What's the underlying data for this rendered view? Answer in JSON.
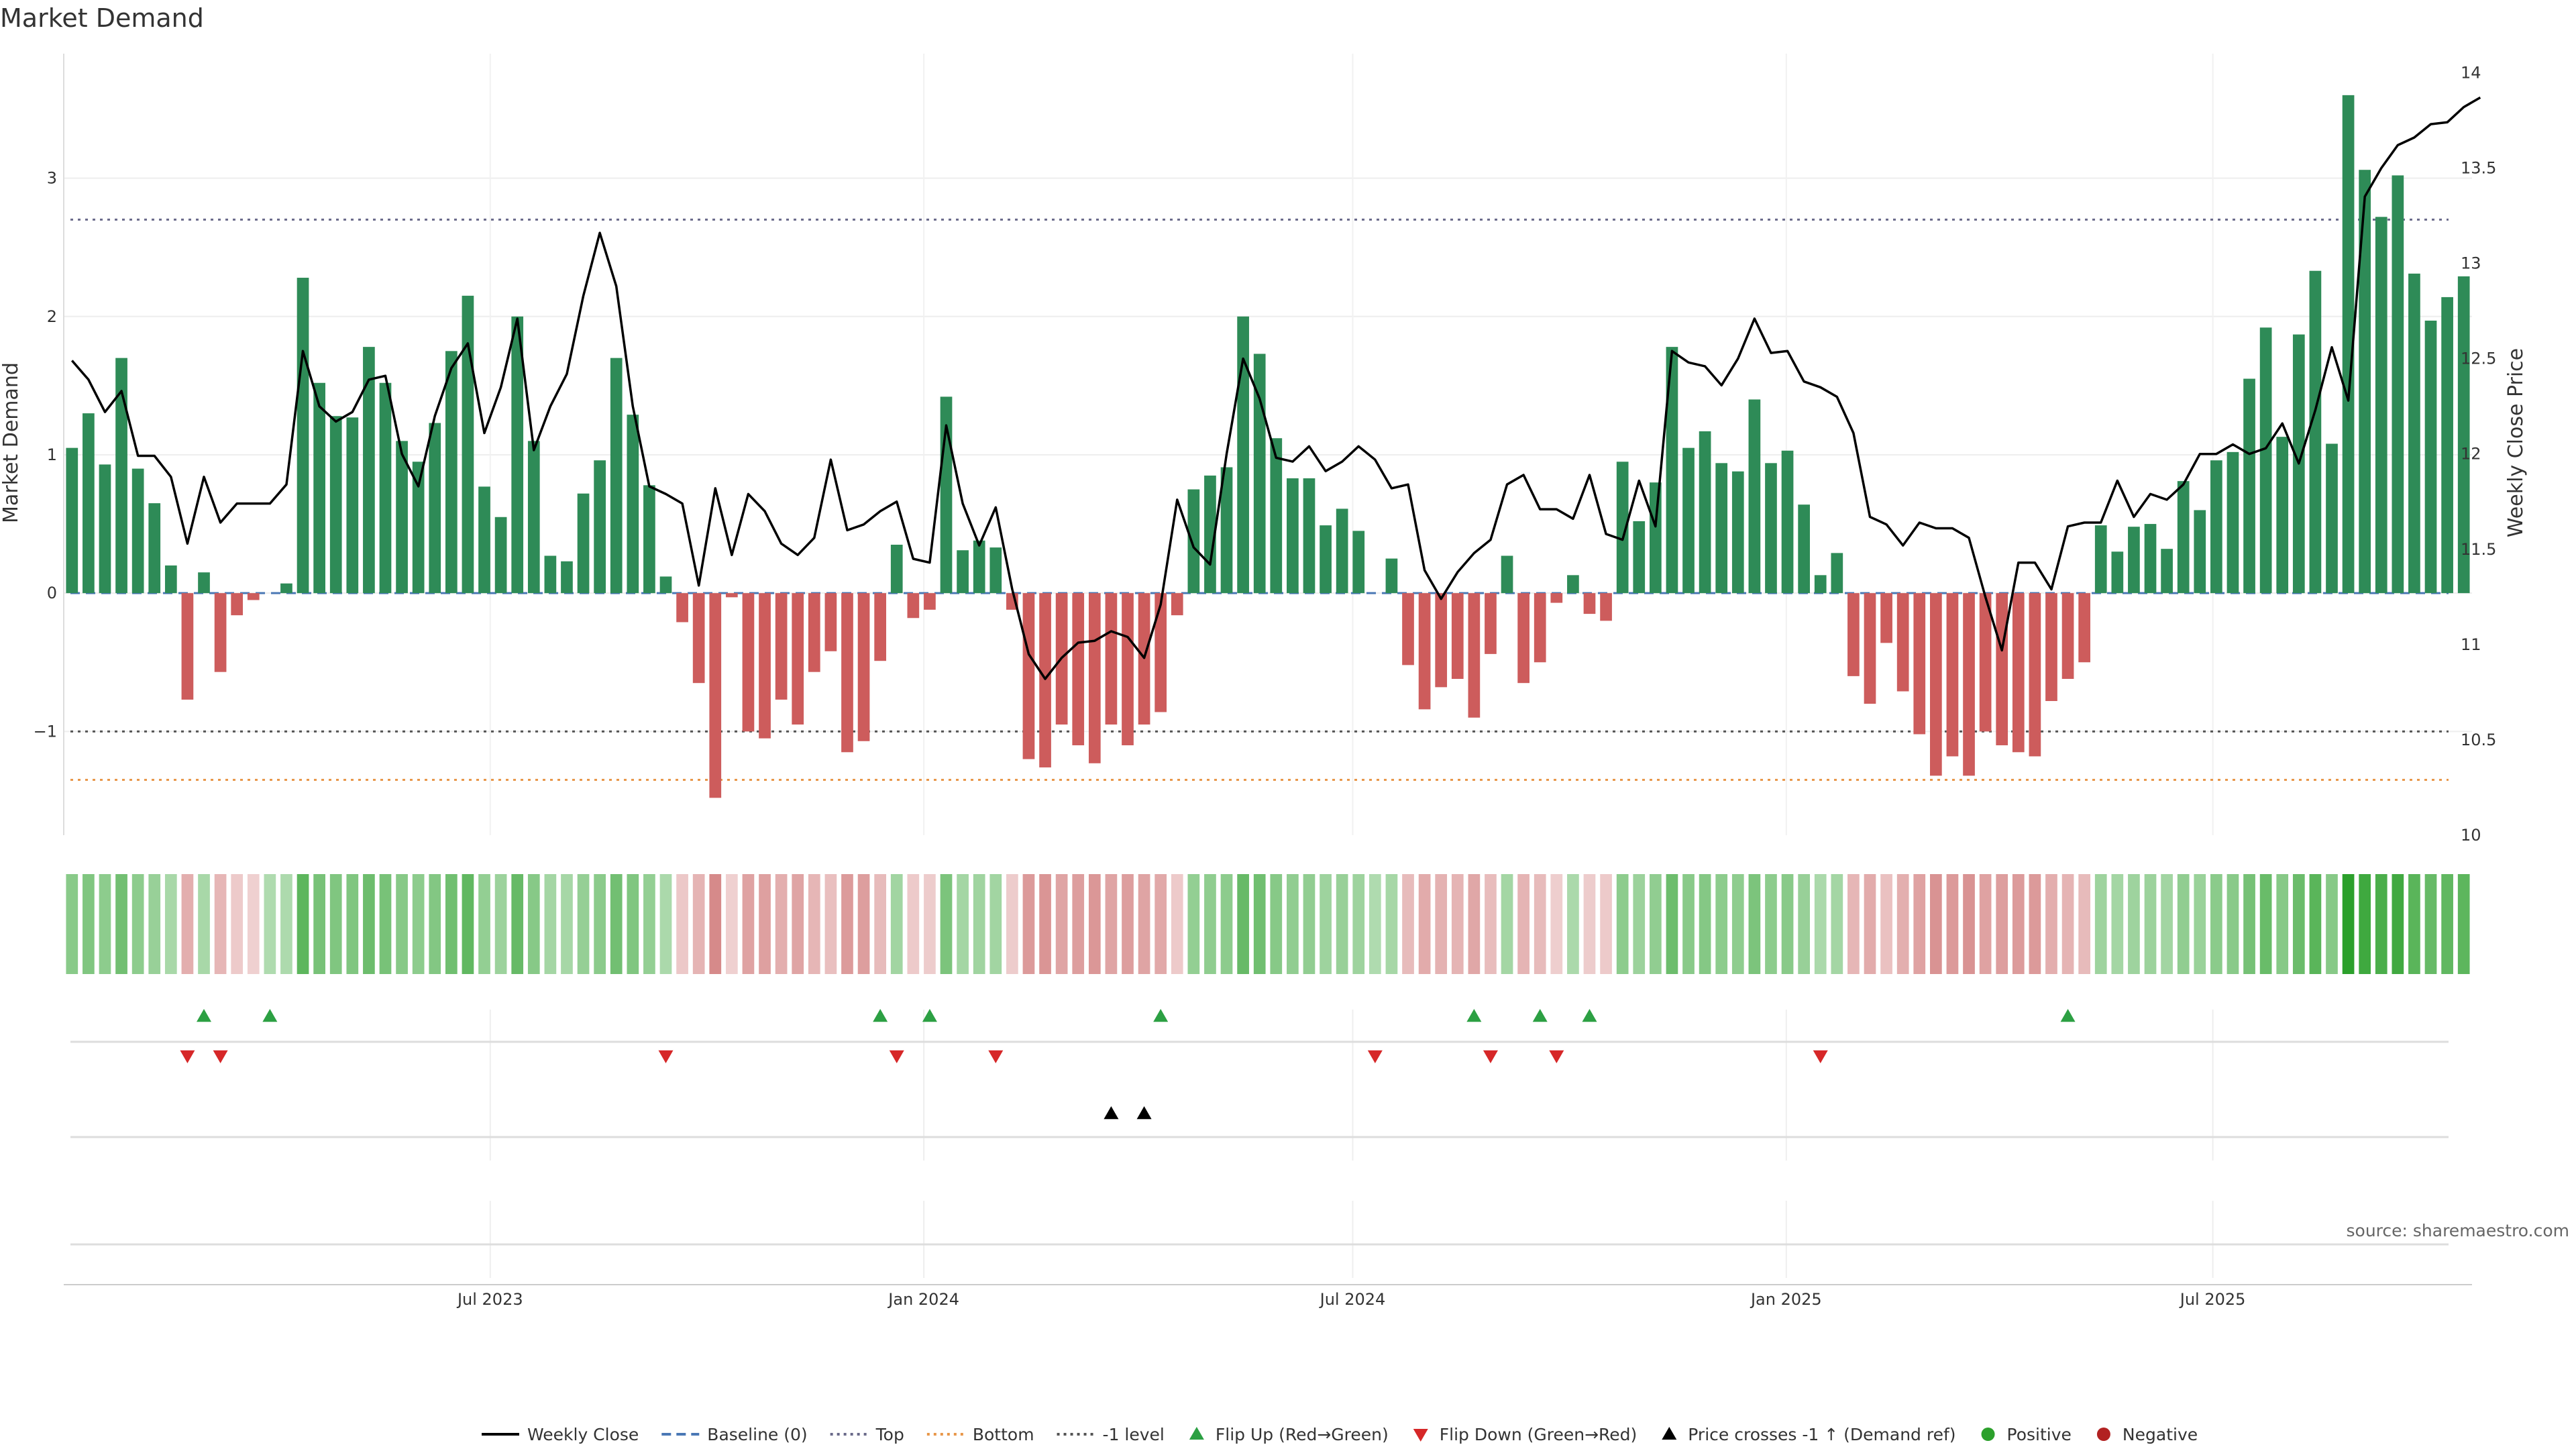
{
  "chart_data": {
    "type": "bar",
    "title": "Market Demand",
    "ylabel": "Market Demand",
    "y2label": "Weekly Close Price",
    "ylim": [
      -1.75,
      3.9
    ],
    "y2lim": [
      10,
      14.1
    ],
    "yticks": [
      -1,
      0,
      1,
      2,
      3
    ],
    "yticks_display": [
      "−1",
      "0",
      "1",
      "2",
      "3"
    ],
    "y2ticks": [
      10,
      10.5,
      11,
      11.5,
      12,
      12.5,
      13,
      13.5,
      14
    ],
    "date_start": "2023-01-01",
    "date_end": "2025-10-19",
    "x_tick_dates": [
      "2023-07-01",
      "2024-01-01",
      "2024-07-01",
      "2025-01-01",
      "2025-07-01"
    ],
    "x_tick_labels": [
      "Jul 2023",
      "Jan 2024",
      "Jul 2024",
      "Jan 2025",
      "Jul 2025"
    ],
    "reference_lines": {
      "top": 2.7,
      "bottom": -1.35,
      "minus_one": -1,
      "baseline": 0
    },
    "demand": [
      1.05,
      1.3,
      0.93,
      1.7,
      0.9,
      0.65,
      0.2,
      -0.77,
      0.15,
      -0.57,
      -0.16,
      -0.05,
      0.0,
      0.07,
      2.28,
      1.52,
      1.28,
      1.27,
      1.78,
      1.52,
      1.1,
      0.95,
      1.23,
      1.75,
      2.15,
      0.77,
      0.55,
      2.0,
      1.1,
      0.27,
      0.23,
      0.72,
      0.96,
      1.7,
      1.29,
      0.78,
      0.12,
      -0.21,
      -0.65,
      -1.48,
      -0.03,
      -1.0,
      -1.05,
      -0.77,
      -0.95,
      -0.57,
      -0.42,
      -1.15,
      -1.07,
      -0.49,
      0.35,
      -0.18,
      -0.12,
      1.42,
      0.31,
      0.38,
      0.33,
      -0.12,
      -1.2,
      -1.26,
      -0.95,
      -1.1,
      -1.23,
      -0.95,
      -1.1,
      -0.95,
      -0.86,
      -0.16,
      0.75,
      0.85,
      0.91,
      2.0,
      1.73,
      1.12,
      0.83,
      0.83,
      0.49,
      0.61,
      0.45,
      0.0,
      0.25,
      -0.52,
      -0.84,
      -0.68,
      -0.62,
      -0.9,
      -0.44,
      0.27,
      -0.65,
      -0.5,
      -0.07,
      0.13,
      -0.15,
      -0.2,
      0.95,
      0.52,
      0.8,
      1.78,
      1.05,
      1.17,
      0.94,
      0.88,
      1.4,
      0.94,
      1.03,
      0.64,
      0.13,
      0.29,
      -0.6,
      -0.8,
      -0.36,
      -0.71,
      -1.02,
      -1.32,
      -1.18,
      -1.32,
      -1.0,
      -1.1,
      -1.15,
      -1.18,
      -0.78,
      -0.62,
      -0.5,
      0.49,
      0.3,
      0.48,
      0.5,
      0.32,
      0.81,
      0.6,
      0.96,
      1.02,
      1.55,
      1.92,
      1.13,
      1.87,
      2.33,
      1.08,
      3.6,
      3.06,
      2.72,
      3.02,
      2.31,
      1.97,
      2.14,
      2.29
    ],
    "weekly_close": [
      12.49,
      12.39,
      12.22,
      12.33,
      11.99,
      11.99,
      11.88,
      11.53,
      11.88,
      11.64,
      11.74,
      11.74,
      11.74,
      11.84,
      12.54,
      12.25,
      12.17,
      12.22,
      12.39,
      12.41,
      12.0,
      11.83,
      12.2,
      12.45,
      12.58,
      12.11,
      12.35,
      12.71,
      12.02,
      12.25,
      12.42,
      12.83,
      13.16,
      12.88,
      12.25,
      11.83,
      11.79,
      11.74,
      11.31,
      11.82,
      11.47,
      11.79,
      11.7,
      11.53,
      11.47,
      11.56,
      11.97,
      11.6,
      11.63,
      11.7,
      11.75,
      11.45,
      11.43,
      12.15,
      11.74,
      11.52,
      11.72,
      11.29,
      10.95,
      10.82,
      10.93,
      11.01,
      11.02,
      11.07,
      11.04,
      10.93,
      11.21,
      11.76,
      11.51,
      11.42,
      12.0,
      12.5,
      12.29,
      11.98,
      11.96,
      12.04,
      11.91,
      11.96,
      12.04,
      11.97,
      11.82,
      11.84,
      11.39,
      11.24,
      11.38,
      11.48,
      11.55,
      11.84,
      11.89,
      11.71,
      11.71,
      11.66,
      11.89,
      11.58,
      11.55,
      11.86,
      11.62,
      12.54,
      12.48,
      12.46,
      12.36,
      12.5,
      12.71,
      12.53,
      12.54,
      12.38,
      12.35,
      12.3,
      12.11,
      11.67,
      11.63,
      11.52,
      11.64,
      11.61,
      11.61,
      11.56,
      11.25,
      10.97,
      11.43,
      11.43,
      11.29,
      11.62,
      11.64,
      11.64,
      11.86,
      11.67,
      11.79,
      11.76,
      11.84,
      12.0,
      12.0,
      12.05,
      12.0,
      12.03,
      12.16,
      11.95,
      12.23,
      12.56,
      12.28,
      13.35,
      13.5,
      13.62,
      13.66,
      13.73,
      13.74,
      13.82,
      13.87
    ]
  },
  "signal_rows": {
    "flip_up_weeks": [
      8,
      12,
      49,
      52,
      66,
      85,
      89,
      92,
      121
    ],
    "flip_down_weeks": [
      7,
      9,
      36,
      50,
      56,
      79,
      86,
      90,
      106
    ],
    "price_cross_weeks": [
      63,
      65
    ]
  },
  "legend": [
    {
      "label": "Weekly Close",
      "marker": "line",
      "color": "#000000"
    },
    {
      "label": "Baseline (0)",
      "marker": "dash",
      "color": "#4a78b5"
    },
    {
      "label": "Top",
      "marker": "dot",
      "color": "#6a6a8a"
    },
    {
      "label": "Bottom",
      "marker": "dot",
      "color": "#e8974a"
    },
    {
      "label": "-1 level",
      "marker": "dot",
      "color": "#555555"
    },
    {
      "label": "Flip Up (Red→Green)",
      "marker": "tri-up",
      "color": "#2ca043"
    },
    {
      "label": "Flip Down (Green→Red)",
      "marker": "tri-down",
      "color": "#d62728"
    },
    {
      "label": "Price crosses -1 ↑ (Demand ref)",
      "marker": "tri-up",
      "color": "#000000"
    },
    {
      "label": "Positive",
      "marker": "circle",
      "color": "#2ca02c"
    },
    {
      "label": "Negative",
      "marker": "circle",
      "color": "#b22222"
    }
  ],
  "source": "source: sharemaestro.com",
  "colors": {
    "positive_bar": "#2e8b57",
    "negative_bar": "#cd5c5c",
    "price_line": "#000000",
    "flip_up": "#2ca043",
    "flip_down": "#d62728",
    "price_cross": "#000000"
  }
}
